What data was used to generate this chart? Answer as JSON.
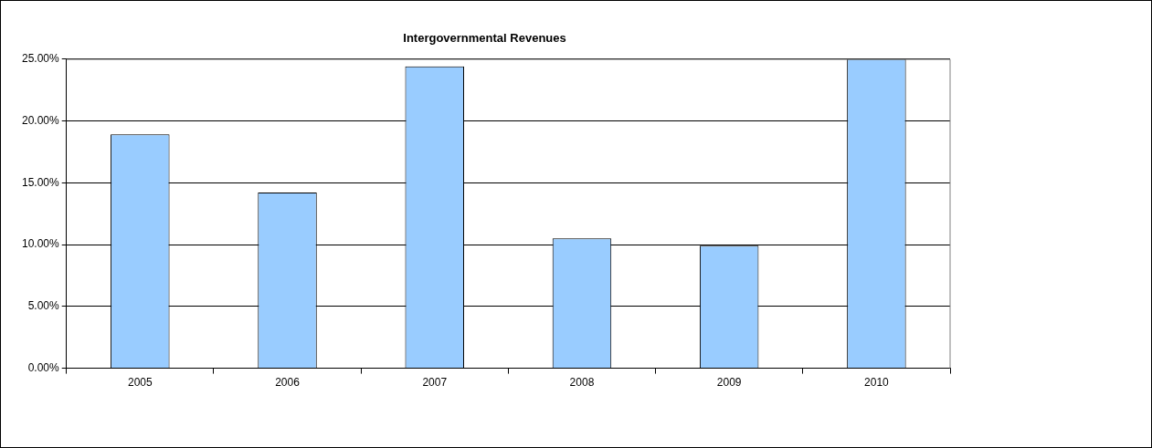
{
  "chart_data": {
    "type": "bar",
    "title": "Intergovernmental Revenues",
    "categories": [
      "2005",
      "2006",
      "2007",
      "2008",
      "2009",
      "2010"
    ],
    "values": [
      18.9,
      14.2,
      24.4,
      10.5,
      9.9,
      25
    ],
    "color": "#99ccff",
    "ylim": [
      0,
      25
    ],
    "yticks": [
      {
        "value": 0,
        "label": "0.00%"
      },
      {
        "value": 5,
        "label": "5.00%"
      },
      {
        "value": 10,
        "label": "10.00%"
      },
      {
        "value": 15,
        "label": "15.00%"
      },
      {
        "value": 20,
        "label": "20.00%"
      },
      {
        "value": 25,
        "label": "25.00%"
      }
    ],
    "grid": "y",
    "legend": false
  }
}
